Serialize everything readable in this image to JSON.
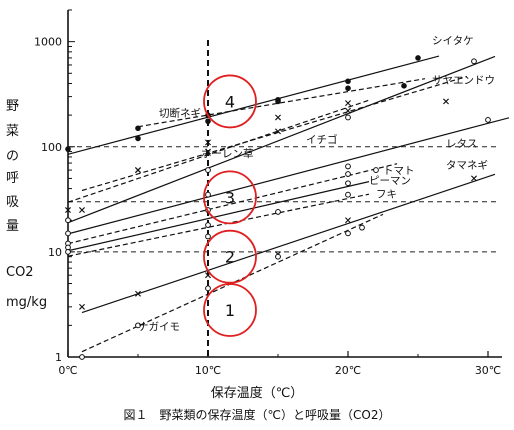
{
  "chart_data": {
    "type": "scatter",
    "y_scale": "log",
    "ylim": [
      1,
      2000
    ],
    "xlim": [
      0,
      31
    ],
    "y_ticks": [
      "1",
      "10",
      "100",
      "1000"
    ],
    "x_ticks": [
      "0℃",
      "10℃",
      "20℃",
      "30℃"
    ],
    "x_tick_values": [
      0,
      10,
      20,
      30
    ],
    "ylabel_lines": [
      "野",
      "菜",
      "の",
      "呼",
      "吸",
      "量",
      "CO2",
      "mg/kg"
    ],
    "xlabel": "保存温度（℃）",
    "caption": "図１　野菜類の保存温度（℃）と呼吸量（CO2）",
    "zones": [
      {
        "label": "1",
        "x": 11,
        "y": 2.8
      },
      {
        "label": "2",
        "x": 11,
        "y": 9
      },
      {
        "label": "3",
        "x": 11,
        "y": 33
      },
      {
        "label": "4",
        "x": 11,
        "y": 270
      }
    ],
    "band_lines_y": [
      100,
      30,
      10
    ],
    "series": [
      {
        "name": "シイタケ",
        "style": "solid",
        "marker": "dot",
        "x": [
          0,
          5,
          10,
          15,
          20,
          25
        ],
        "y": [
          95,
          120,
          175,
          280,
          420,
          700
        ],
        "label_at": {
          "x": 26,
          "y": 950
        }
      },
      {
        "name": "サヤエンドウ",
        "style": "solid",
        "marker": "circle",
        "x": [
          0,
          10,
          20,
          29
        ],
        "y": [
          20,
          60,
          190,
          650
        ],
        "label_at": {
          "x": 26,
          "y": 400
        }
      },
      {
        "name": "切断ネギ",
        "style": "dashed",
        "marker": "dot",
        "x": [
          5,
          10,
          15,
          20,
          24
        ],
        "y": [
          150,
          200,
          270,
          360,
          380
        ],
        "label_at": {
          "x": 6.5,
          "y": 195
        }
      },
      {
        "name": "イチゴ",
        "style": "dashed",
        "marker": "cross",
        "x": [
          1,
          5,
          10,
          15,
          20,
          27
        ],
        "y": [
          25,
          60,
          110,
          190,
          260,
          270
        ],
        "label_at": {
          "x": 17,
          "y": 108
        }
      },
      {
        "name": "レタス",
        "style": "solid",
        "marker": "circle",
        "x": [
          0,
          10,
          20,
          30
        ],
        "y": [
          15,
          35,
          65,
          180
        ],
        "label_at": {
          "x": 27,
          "y": 100
        }
      },
      {
        "name": "ホーレン草",
        "style": "dashed",
        "marker": "cross",
        "x": [
          0,
          5,
          10,
          15,
          20
        ],
        "y": [
          25,
          60,
          90,
          140,
          220
        ],
        "label_at": {
          "x": 9.5,
          "y": 80
        }
      },
      {
        "name": "トマト",
        "style": "dashed",
        "marker": "circle",
        "x": [
          0,
          10,
          20,
          22
        ],
        "y": [
          12,
          25,
          55,
          60
        ],
        "label_at": {
          "x": 22.5,
          "y": 55
        }
      },
      {
        "name": "ピーマン",
        "style": "solid",
        "marker": "circle",
        "x": [
          0,
          10,
          20
        ],
        "y": [
          11,
          18,
          45
        ],
        "label_at": {
          "x": 21.5,
          "y": 44
        }
      },
      {
        "name": "フキ",
        "style": "dashed",
        "marker": "circle",
        "x": [
          0,
          10,
          15,
          20
        ],
        "y": [
          10,
          14,
          24,
          35
        ],
        "label_at": {
          "x": 22,
          "y": 33
        }
      },
      {
        "name": "タマネギ",
        "style": "solid",
        "marker": "cross",
        "x": [
          1,
          5,
          10,
          15,
          20,
          29
        ],
        "y": [
          3,
          4,
          6,
          9.5,
          20,
          50
        ],
        "label_at": {
          "x": 27,
          "y": 62
        }
      },
      {
        "name": "ナガイモ",
        "style": "dashed",
        "marker": "circle",
        "x": [
          1,
          5,
          10,
          15,
          20,
          21
        ],
        "y": [
          1,
          2,
          4.5,
          9,
          15,
          17
        ],
        "label_at": {
          "x": 5,
          "y": 1.8
        }
      }
    ]
  }
}
